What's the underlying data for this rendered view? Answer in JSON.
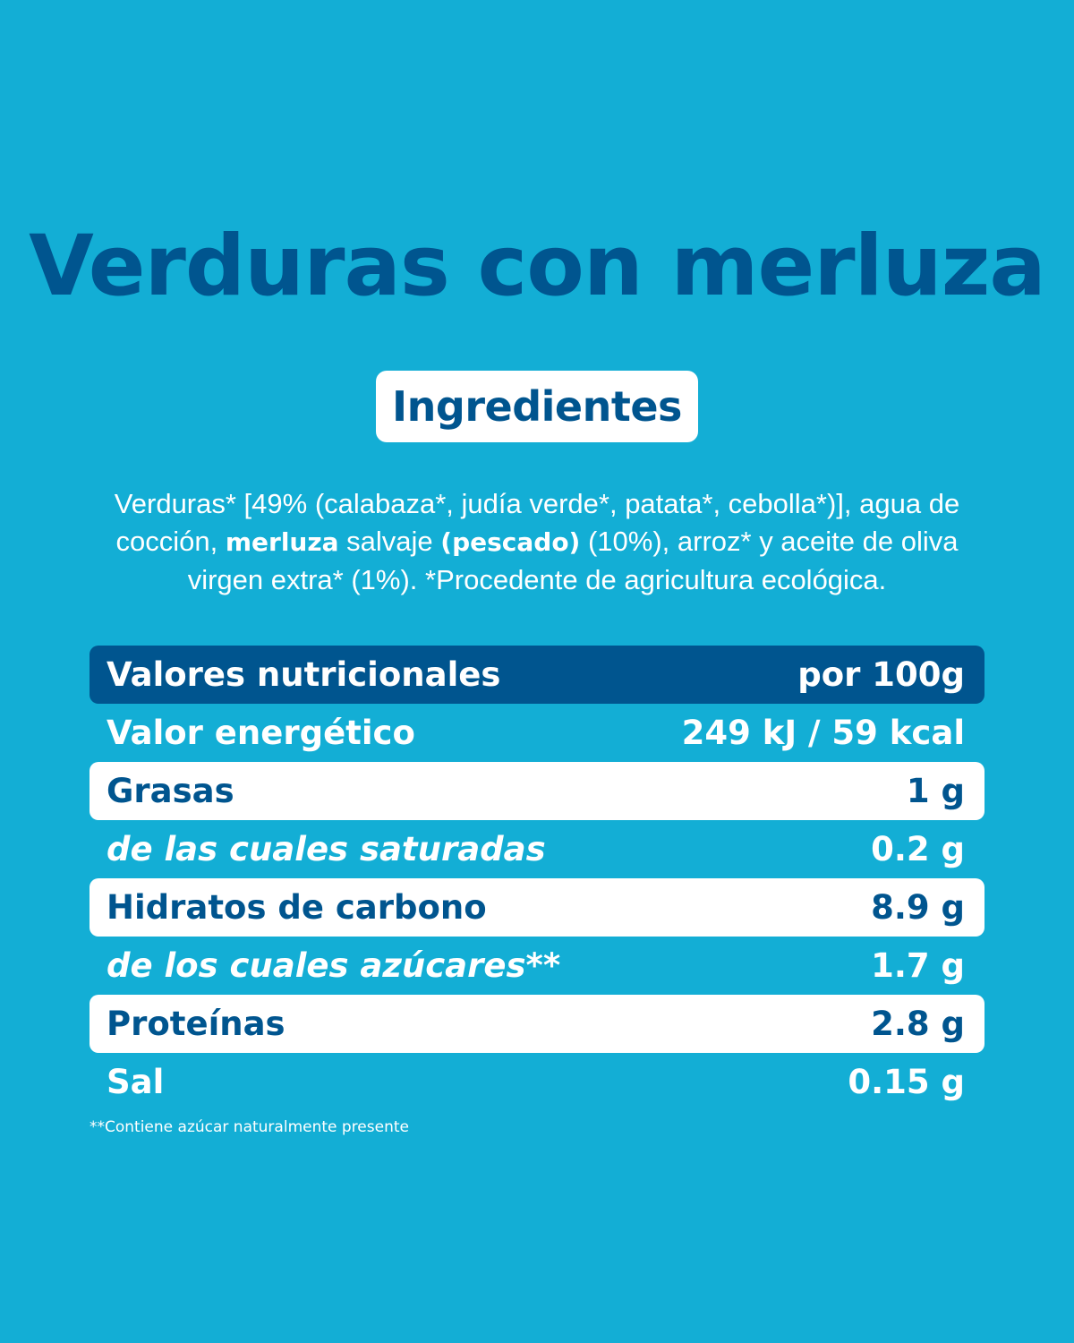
{
  "title": "Verduras con merluza",
  "ingredients_heading": "Ingredientes",
  "ingredients": {
    "part1": "Verduras* [49% (calabaza*, judía verde*, patata*, cebolla*)], agua de cocción, ",
    "bold1": "merluza",
    "part2": " salvaje ",
    "bold2": "(pescado)",
    "part3": " (10%), arroz* y aceite de oliva virgen extra* (1%). *Procedente de agricultura ecológica."
  },
  "nutrition": {
    "header_label": "Valores nutricionales",
    "header_value": "por 100g",
    "rows": [
      {
        "label": "Valor energético",
        "value": "249 kJ / 59 kcal"
      },
      {
        "label": "Grasas",
        "value": "1 g"
      },
      {
        "label": "de las cuales saturadas",
        "value": "0.2 g"
      },
      {
        "label": "Hidratos de carbono",
        "value": "8.9 g"
      },
      {
        "label": "de los cuales azúcares**",
        "value": "1.7 g"
      },
      {
        "label": "Proteínas",
        "value": "2.8 g"
      },
      {
        "label": "Sal",
        "value": "0.15 g"
      }
    ]
  },
  "footnote": "**Contiene azúcar naturalmente presente",
  "colors": {
    "background": "#13aed5",
    "dark_blue": "#00558f",
    "white": "#ffffff"
  }
}
